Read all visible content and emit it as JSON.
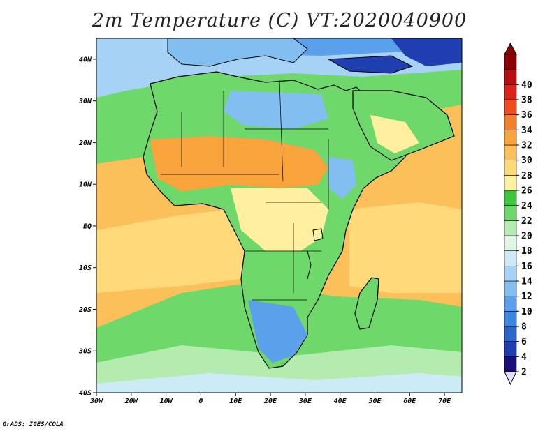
{
  "title": "2m Temperature (C) VT:2020040900",
  "credit": "GrADS: IGES/COLA",
  "map": {
    "lon_range": [
      -30,
      75
    ],
    "lat_range": [
      -40,
      45
    ],
    "lat_ticks": [
      {
        "value": 40,
        "label": "40N"
      },
      {
        "value": 30,
        "label": "30N"
      },
      {
        "value": 20,
        "label": "20N"
      },
      {
        "value": 10,
        "label": "10N"
      },
      {
        "value": 0,
        "label": "EQ"
      },
      {
        "value": -10,
        "label": "10S"
      },
      {
        "value": -20,
        "label": "20S"
      },
      {
        "value": -30,
        "label": "30S"
      },
      {
        "value": -40,
        "label": "40S"
      }
    ],
    "lon_ticks": [
      {
        "value": -30,
        "label": "30W"
      },
      {
        "value": -20,
        "label": "20W"
      },
      {
        "value": -10,
        "label": "10W"
      },
      {
        "value": 0,
        "label": "0"
      },
      {
        "value": 10,
        "label": "10E"
      },
      {
        "value": 20,
        "label": "20E"
      },
      {
        "value": 30,
        "label": "30E"
      },
      {
        "value": 40,
        "label": "40E"
      },
      {
        "value": 50,
        "label": "50E"
      },
      {
        "value": 60,
        "label": "60E"
      },
      {
        "value": 70,
        "label": "70E"
      }
    ]
  },
  "colorbar": {
    "levels": [
      "2",
      "4",
      "6",
      "8",
      "10",
      "12",
      "14",
      "16",
      "18",
      "20",
      "22",
      "24",
      "26",
      "28",
      "30",
      "32",
      "34",
      "36",
      "38",
      "40"
    ],
    "colors": [
      "#1a0f7a",
      "#1f3fb0",
      "#2a66cc",
      "#3a86e0",
      "#5aa0ea",
      "#82bff0",
      "#a6d3f5",
      "#cdebf7",
      "#e2f7e2",
      "#b4ecb0",
      "#6fd86b",
      "#3ec73c",
      "#fff0a0",
      "#ffd97a",
      "#fcc05a",
      "#f8a33b",
      "#f57e2a",
      "#f04b21",
      "#dc2318",
      "#b80f0f",
      "#8c0000"
    ],
    "under_color": "#e4dcfa"
  }
}
